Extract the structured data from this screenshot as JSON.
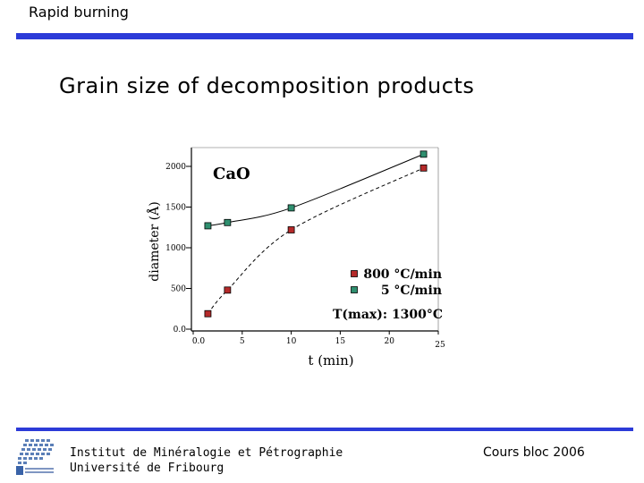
{
  "header": {
    "title": "Rapid burning"
  },
  "slide": {
    "title": "Grain size of decomposition products"
  },
  "footer": {
    "institute_line1": "Institut de Minéralogie et Pétrographie",
    "institute_line2": "Université de Fribourg",
    "course": "Cours bloc 2006"
  },
  "chart_data": {
    "type": "scatter",
    "annotation": "CaO",
    "note": "T(max): 1300°C",
    "xlabel": "t (min)",
    "ylabel": "diameter (Å)",
    "xlim": [
      0,
      25
    ],
    "ylim": [
      0,
      2200
    ],
    "x_ticks": [
      "0.0",
      "5",
      "10",
      "15",
      "20",
      "25"
    ],
    "y_ticks": [
      "0.0",
      "500",
      "1000",
      "1500",
      "2000"
    ],
    "legend_position": "bottom-right",
    "series": [
      {
        "name": "800 °C/min",
        "color": "#b52a2a",
        "line": "dashed",
        "x": [
          1.5,
          3.5,
          10.0,
          23.5
        ],
        "y": [
          190,
          480,
          1220,
          1980
        ]
      },
      {
        "name": "5 °C/min",
        "color": "#2f8f6f",
        "line": "solid",
        "x": [
          1.5,
          3.5,
          10.0,
          23.5
        ],
        "y": [
          1270,
          1310,
          1490,
          2150
        ]
      }
    ]
  }
}
